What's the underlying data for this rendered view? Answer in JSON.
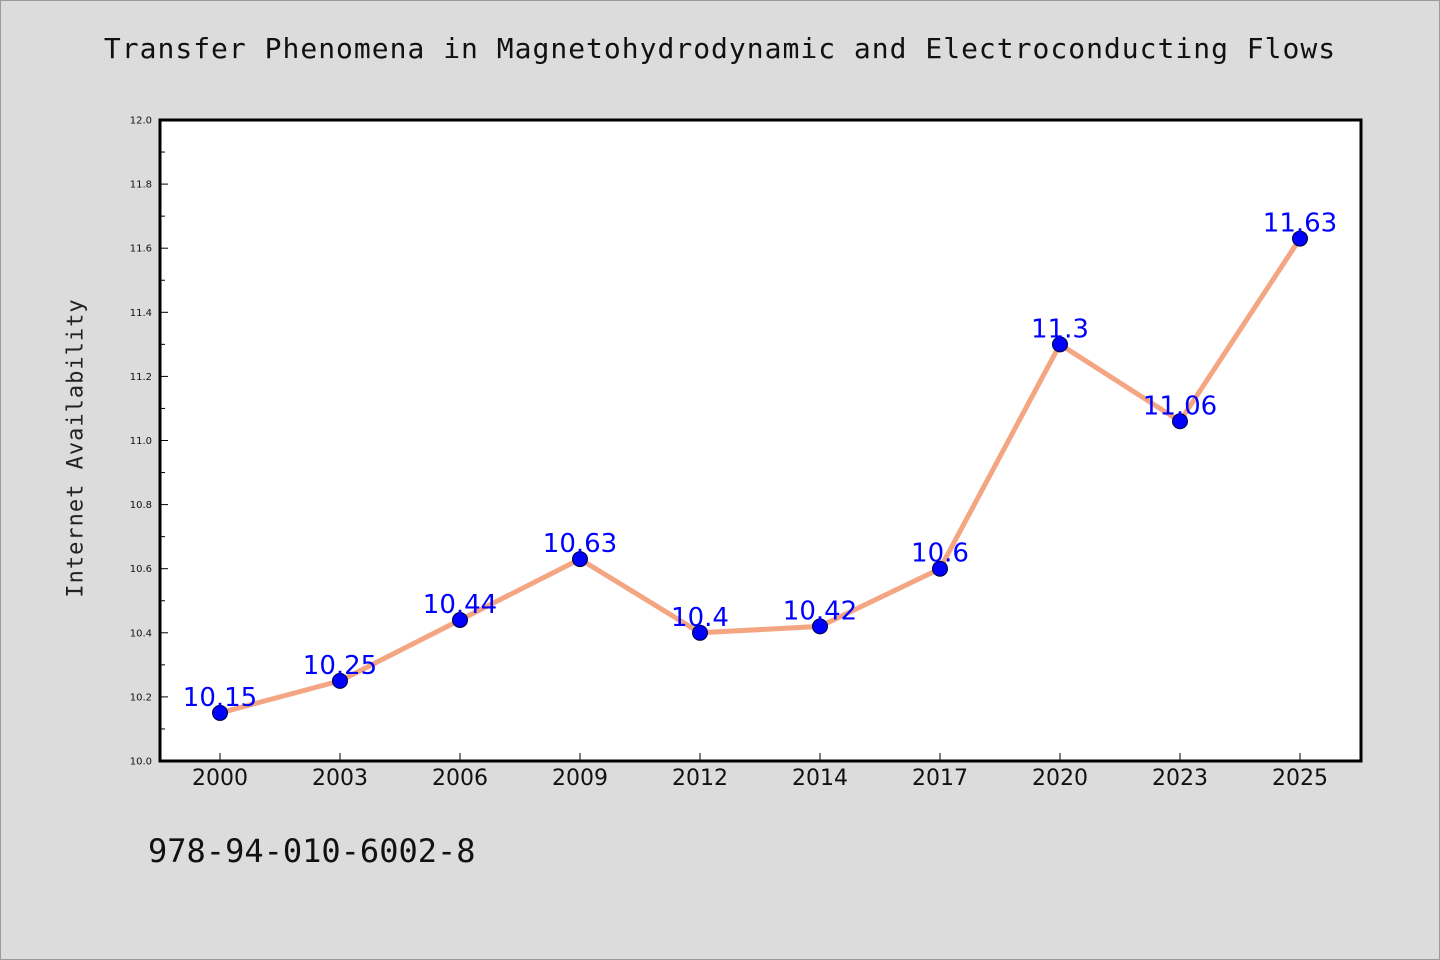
{
  "chart_data": {
    "type": "line",
    "title": "Transfer Phenomena in Magnetohydrodynamic and Electroconducting Flows",
    "xlabel": "",
    "ylabel": "Internet Availability",
    "categories": [
      "2000",
      "2003",
      "2006",
      "2009",
      "2012",
      "2014",
      "2017",
      "2020",
      "2023",
      "2025"
    ],
    "series": [
      {
        "values": [
          10.15,
          10.25,
          10.44,
          10.63,
          10.4,
          10.42,
          10.6,
          11.3,
          11.06,
          11.63
        ],
        "data_labels": [
          "10.15",
          "10.25",
          "10.44",
          "10.63",
          "10.4",
          "10.42",
          "10.6",
          "11.3",
          "11.06",
          "11.63"
        ],
        "line_color": "#f4a582",
        "marker_color": "#0000ff"
      }
    ],
    "ylim": [
      10.0,
      12.0
    ],
    "yticks": [
      "10.0",
      "10.2",
      "10.4",
      "10.6",
      "10.8",
      "11.0",
      "11.2",
      "11.4",
      "11.6",
      "11.8",
      "12.0"
    ],
    "grid": false,
    "legend": "none",
    "background_color": "#dcdcdc",
    "plot_background_color": "#ffffff",
    "label_color": "#0000ff"
  },
  "footer": {
    "isbn": "978-94-010-6002-8"
  }
}
